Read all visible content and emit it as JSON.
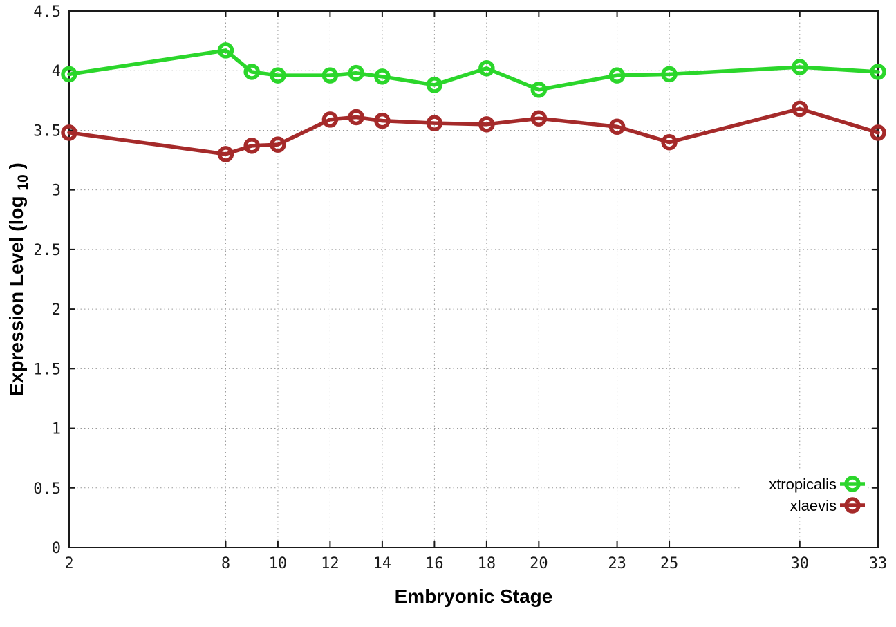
{
  "chart_data": {
    "type": "line",
    "title": "",
    "xlabel": "Embryonic Stage",
    "ylabel": {
      "pre": "Expression Level (log",
      "sub": "10",
      "post": ")"
    },
    "xlim": [
      2,
      33
    ],
    "ylim": [
      0,
      4.5
    ],
    "grid": true,
    "legend_position": "inside-bottom-right",
    "xticks": [
      "2",
      "8",
      "10",
      "12",
      "14",
      "16",
      "18",
      "20",
      "23",
      "25",
      "30",
      "33"
    ],
    "yticks": [
      "0",
      "0.5",
      "1",
      "1.5",
      "2",
      "2.5",
      "3",
      "3.5",
      "4",
      "4.5"
    ],
    "x": [
      2,
      8,
      9,
      10,
      12,
      13,
      14,
      16,
      18,
      20,
      23,
      25,
      30,
      33
    ],
    "series": [
      {
        "name": "xtropicalis",
        "color": "#2bd62b",
        "marker": "open-circle",
        "values": [
          3.97,
          4.17,
          3.99,
          3.96,
          3.96,
          3.98,
          3.95,
          3.88,
          4.02,
          3.84,
          3.96,
          3.97,
          4.03,
          3.99
        ]
      },
      {
        "name": "xlaevis",
        "color": "#a52a2a",
        "marker": "open-circle",
        "values": [
          3.48,
          3.3,
          3.37,
          3.38,
          3.59,
          3.61,
          3.58,
          3.56,
          3.55,
          3.6,
          3.53,
          3.4,
          3.68,
          3.48
        ]
      }
    ],
    "colors": {
      "background": "#ffffff",
      "axis": "#1a1a1a",
      "grid": "#999999",
      "text": "#000000"
    }
  }
}
